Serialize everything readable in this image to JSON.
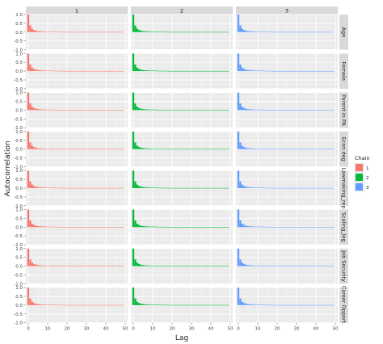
{
  "chart_data": {
    "type": "bar",
    "xlabel": "Lag",
    "ylabel": "Autocorrelation",
    "xlim": [
      0,
      50
    ],
    "ylim": [
      -1,
      1
    ],
    "x_ticks": [
      "0",
      "10",
      "20",
      "30",
      "40",
      "50"
    ],
    "y_ticks": [
      "-1.0",
      "-0.5",
      "0.0",
      "0.5",
      "1.0"
    ],
    "chains": [
      "1",
      "2",
      "3"
    ],
    "parameters": [
      "Age",
      "Female",
      "Parent in PA",
      "Econ deg",
      "Lawmaking_rep",
      "Scaling_leg",
      "Job Security",
      "Career Opport."
    ],
    "legend": {
      "title": "Chain",
      "position": "right",
      "items": [
        {
          "label": "1",
          "color": "#F8766D"
        },
        {
          "label": "2",
          "color": "#00BA38"
        },
        {
          "label": "3",
          "color": "#619CFF"
        }
      ]
    },
    "grid": true,
    "acf_profile": [
      1.0,
      0.38,
      0.2,
      0.12,
      0.08,
      0.06,
      0.05,
      0.04,
      0.035,
      0.03,
      0.03,
      0.028,
      0.025,
      0.02,
      0.02,
      0.018,
      0.015,
      0.015,
      0.012,
      0.01,
      0.01,
      0.01,
      0.01,
      0.01,
      0.01,
      0.01,
      0.01,
      0.01,
      0.01,
      0.01,
      0.01,
      0.01,
      0.01,
      0.01,
      0.01,
      0.01,
      0.01,
      0.01,
      0.01,
      0.01,
      0.01,
      0.01,
      0.01,
      0.01,
      0.01,
      0.01,
      0.01,
      0.01,
      0.01,
      0.01
    ]
  }
}
